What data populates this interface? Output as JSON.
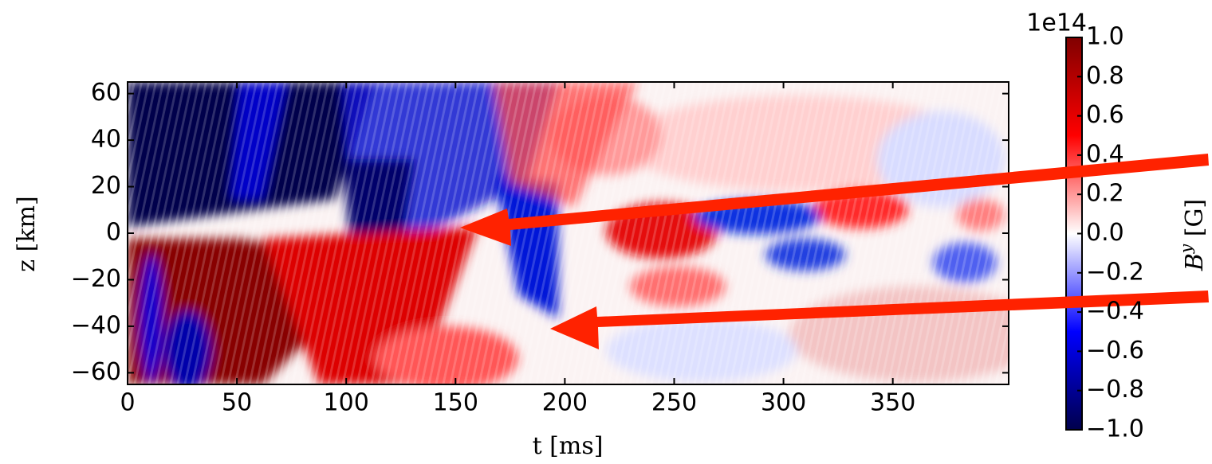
{
  "chart_data": {
    "type": "heatmap",
    "xlabel": "t [ms]",
    "ylabel": "z [km]",
    "xlim": [
      0,
      403
    ],
    "xticks": [
      0,
      50,
      100,
      150,
      200,
      250,
      300,
      350
    ],
    "ylim": [
      -65,
      65
    ],
    "yticks": [
      {
        "value": -60,
        "label": "−60"
      },
      {
        "value": -40,
        "label": "−40"
      },
      {
        "value": -20,
        "label": "−20"
      },
      0,
      20,
      40,
      60
    ],
    "colormap": [
      "#00004c",
      "#0000ff",
      "#ffffff",
      "#ff0000",
      "#800000"
    ],
    "clim": [
      -1,
      1
    ],
    "colorbar_offset": "1e14",
    "colorbar_label": {
      "symbol": "B",
      "superscript": "y",
      "unit": " [G]"
    },
    "colorbar_ticks": [
      {
        "value": -1,
        "label": "−1.0"
      },
      {
        "value": -0.8,
        "label": "−0.8"
      },
      {
        "value": -0.6,
        "label": "−0.6"
      },
      {
        "value": -0.4,
        "label": "−0.4"
      },
      {
        "value": -0.2,
        "label": "−0.2"
      },
      {
        "value": 0,
        "label": "0.0"
      },
      {
        "value": 0.2,
        "label": "0.2"
      },
      {
        "value": 0.4,
        "label": "0.4"
      },
      {
        "value": 0.6,
        "label": "0.6"
      },
      {
        "value": 0.8,
        "label": "0.8"
      },
      {
        "value": 1,
        "label": "1.0"
      }
    ]
  }
}
